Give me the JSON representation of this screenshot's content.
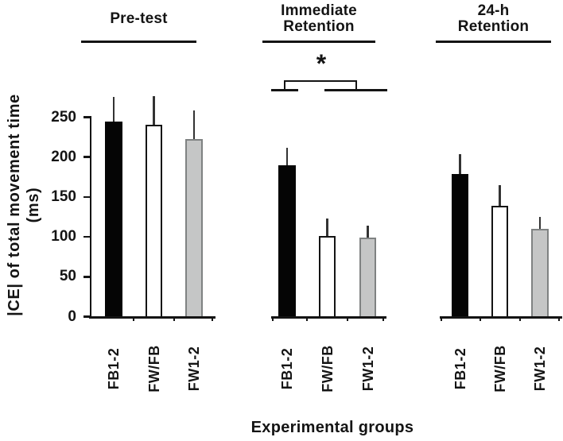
{
  "chart_data": {
    "type": "bar",
    "title": "",
    "xlabel": "Experimental groups",
    "ylabel": "|CE| of total movement time (ms)",
    "ylabel_lines": [
      "|CE| of total movement time",
      "(ms)"
    ],
    "ylim": [
      0,
      250
    ],
    "yticks": [
      0,
      50,
      100,
      150,
      200,
      250
    ],
    "grid": false,
    "legend": "none",
    "categories": [
      "FB1-2",
      "FW/FB",
      "FW1-2"
    ],
    "series_styles": [
      {
        "label": "FB1-2",
        "fill": "#050505",
        "stroke": "#050505"
      },
      {
        "label": "FW/FB",
        "fill": "#ffffff",
        "stroke": "#141414"
      },
      {
        "label": "FW1-2",
        "fill": "#c5c6c6",
        "stroke": "#7f8282"
      }
    ],
    "error_bars": "upper only, no caps",
    "panels": [
      {
        "title_lines": [
          "Pre-test"
        ],
        "categories": [
          "FB1-2",
          "FW/FB",
          "FW1-2"
        ],
        "values": [
          245,
          241,
          223
        ],
        "errors": [
          30,
          35,
          35
        ]
      },
      {
        "title_lines": [
          "Immediate",
          "Retention"
        ],
        "categories": [
          "FB1-2",
          "FW/FB",
          "FW1-2"
        ],
        "values": [
          190,
          101,
          99
        ],
        "errors": [
          22,
          22,
          15
        ]
      },
      {
        "title_lines": [
          "24-h",
          "Retention"
        ],
        "categories": [
          "FB1-2",
          "FW/FB",
          "FW1-2"
        ],
        "values": [
          179,
          139,
          110
        ],
        "errors": [
          25,
          26,
          15
        ]
      }
    ],
    "significance": {
      "symbol": "*",
      "panel": "Immediate Retention",
      "comparison": "FB1-2 vs FW/FB and FW1-2"
    }
  }
}
